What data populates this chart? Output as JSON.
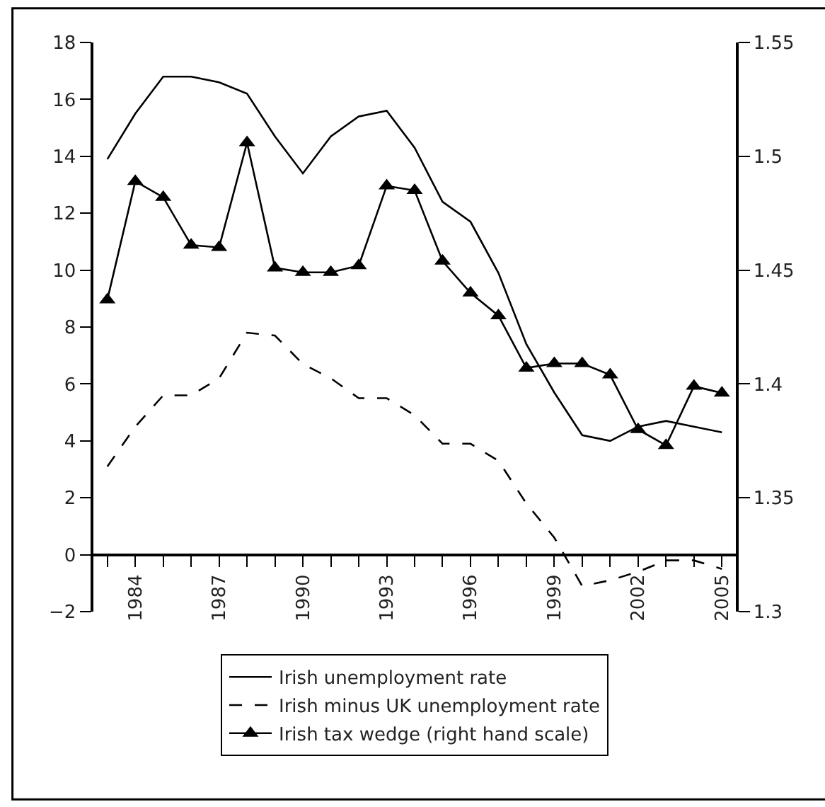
{
  "chart_data": {
    "type": "line",
    "categories": [
      null,
      "1984",
      null,
      null,
      "1987",
      null,
      null,
      "1990",
      null,
      null,
      "1993",
      null,
      null,
      "1996",
      null,
      null,
      "1999",
      null,
      null,
      "2002",
      null,
      null,
      "2005"
    ],
    "series": [
      {
        "name": "Irish unemployment rate",
        "color": "#000000",
        "line_style": "solid",
        "marker": "none",
        "values": [
          13.9,
          15.5,
          16.8,
          16.8,
          16.6,
          16.2,
          14.7,
          13.4,
          14.7,
          15.4,
          15.6,
          14.3,
          12.4,
          11.7,
          9.9,
          7.4,
          5.7,
          4.2,
          4.0,
          4.5,
          4.7,
          4.5,
          4.3
        ]
      },
      {
        "name": "Irish minus UK unemployment rate",
        "color": "#000000",
        "line_style": "dashed",
        "marker": "none",
        "values": [
          3.1,
          4.5,
          5.6,
          5.6,
          6.2,
          7.8,
          7.7,
          6.7,
          6.2,
          5.5,
          5.5,
          4.9,
          3.9,
          3.9,
          3.3,
          1.8,
          0.6,
          -1.1,
          -0.9,
          -0.6,
          -0.2,
          -0.2,
          -0.5
        ]
      },
      {
        "name": "Irish tax wedge (right hand scale)",
        "color": "#000000",
        "line_style": "solid",
        "marker": "triangle",
        "axis": "y2",
        "values": [
          1.437,
          1.489,
          1.482,
          1.461,
          1.46,
          1.506,
          1.451,
          1.449,
          1.449,
          1.452,
          1.487,
          1.485,
          1.454,
          1.44,
          1.43,
          1.407,
          1.409,
          1.409,
          1.404,
          1.38,
          1.373,
          1.399,
          1.396
        ]
      }
    ],
    "ylim": [
      -2,
      18
    ],
    "yticks": [
      {
        "value": -2,
        "label": "−2"
      },
      0,
      2,
      4,
      6,
      8,
      10,
      12,
      14,
      16,
      18
    ],
    "y2lim": [
      1.3,
      1.55
    ],
    "y2ticks": [
      1.3,
      1.35,
      1.4,
      1.45,
      1.5,
      1.55
    ],
    "legend": "bottom"
  }
}
